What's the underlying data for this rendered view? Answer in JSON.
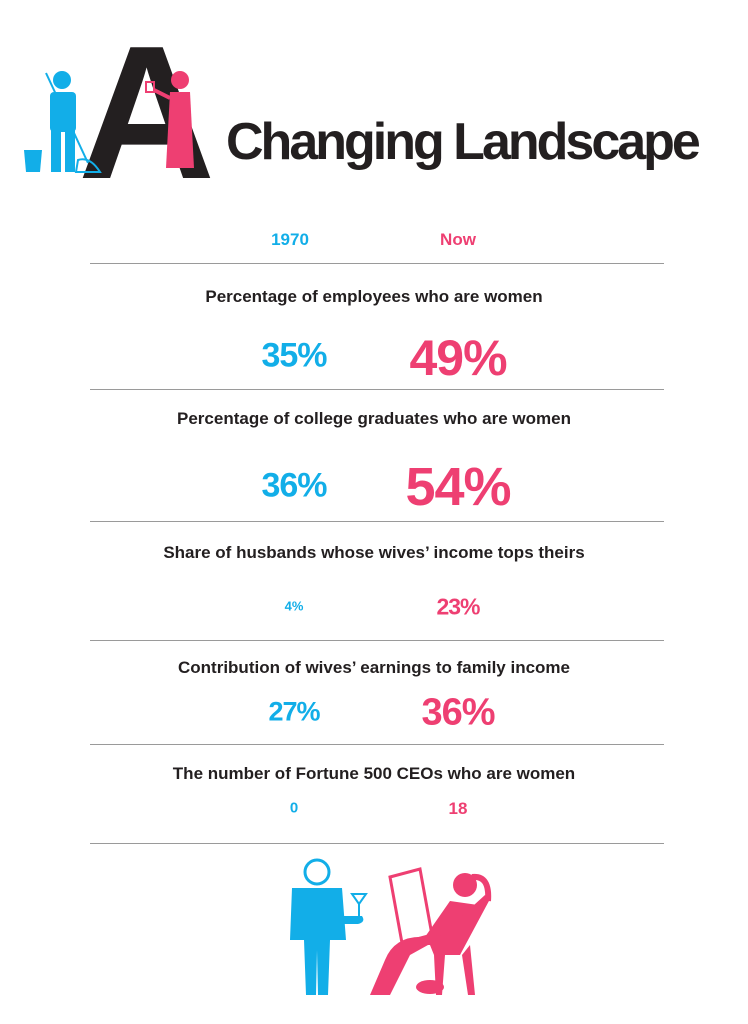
{
  "title": "Changing Landscape",
  "title_initial": "A",
  "colors": {
    "then": "#12aee8",
    "now": "#ee3f72",
    "text": "#231f20"
  },
  "columns": {
    "then": "1970",
    "now": "Now"
  },
  "chart_data": {
    "type": "table",
    "title": "A Changing Landscape",
    "columns": [
      "1970",
      "Now"
    ],
    "rows": [
      {
        "label": "Percentage of employees who are women",
        "then": "35%",
        "now": "49%"
      },
      {
        "label": "Percentage of college graduates who are women",
        "then": "36%",
        "now": "54%"
      },
      {
        "label": "Share of husbands whose wives’ income tops theirs",
        "then": "4%",
        "now": "23%"
      },
      {
        "label": "Contribution of wives’ earnings to family income",
        "then": "27%",
        "now": "36%"
      },
      {
        "label": "The number of Fortune 500 CEOs who are women",
        "then": "0",
        "now": "18"
      }
    ]
  }
}
